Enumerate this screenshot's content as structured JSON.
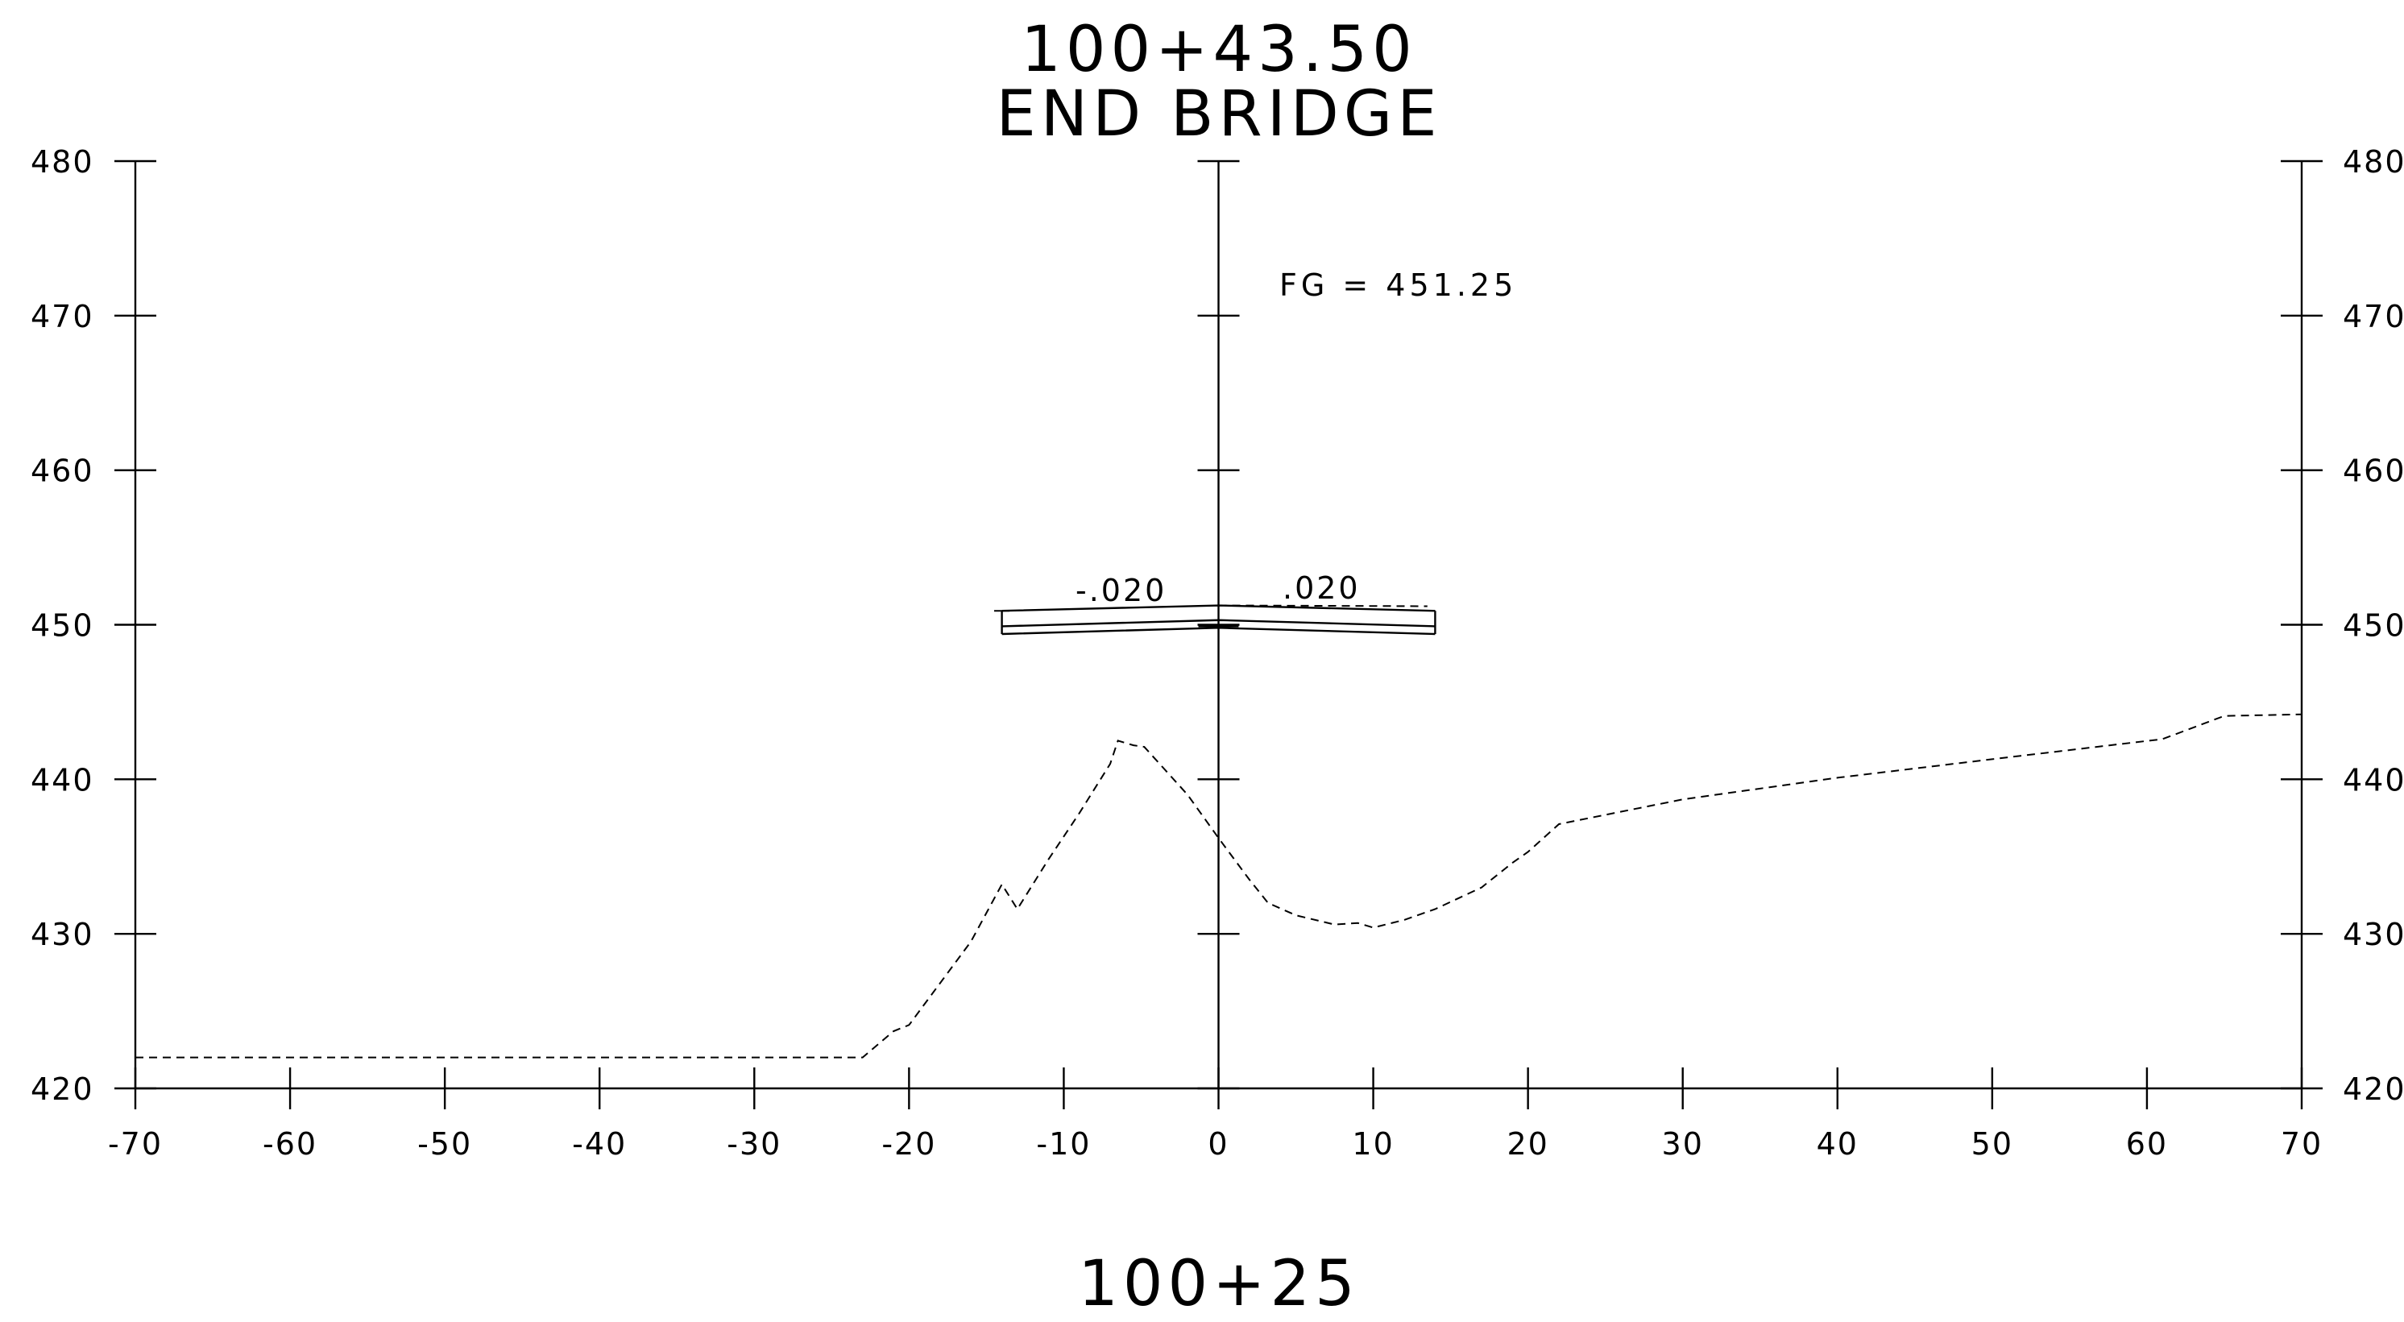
{
  "header": {
    "station": "100+43.50",
    "description": "END BRIDGE"
  },
  "footer": {
    "station": "100+25"
  },
  "annotations": {
    "finished_grade": "FG = 451.25",
    "slope_left": "-.020",
    "slope_right": ".020"
  },
  "chart_data": {
    "type": "line",
    "title": "100+43.50",
    "subtitle": "END BRIDGE",
    "xlim": [
      -70,
      70
    ],
    "ylim": [
      420,
      480
    ],
    "x_ticks": [
      -70,
      -60,
      -50,
      -40,
      -30,
      -20,
      -10,
      0,
      10,
      20,
      30,
      40,
      50,
      60,
      70
    ],
    "x_tick_labels": [
      "-70",
      "-60",
      "-50",
      "-40",
      "-30",
      "-20",
      "-10",
      "0",
      "10",
      "20",
      "30",
      "40",
      "50",
      "60",
      "70"
    ],
    "y_ticks": [
      420,
      430,
      440,
      450,
      460,
      470,
      480
    ],
    "y_tick_labels": [
      "420",
      "430",
      "440",
      "450",
      "460",
      "470",
      "480"
    ],
    "grid": false,
    "series": [
      {
        "style": "dashed",
        "points": [
          [
            -70,
            422
          ],
          [
            -23,
            422
          ],
          [
            -21,
            423.7
          ],
          [
            -20,
            424.1
          ],
          [
            -16,
            429.5
          ],
          [
            -14,
            433.2
          ],
          [
            -13,
            431.6
          ],
          [
            -11,
            434.8
          ],
          [
            -9,
            437.8
          ],
          [
            -7,
            441
          ],
          [
            -6.5,
            442.5
          ],
          [
            -5.5,
            442.2
          ],
          [
            -4.8,
            442.1
          ],
          [
            -2,
            439
          ],
          [
            0,
            436.2
          ],
          [
            2,
            433.5
          ],
          [
            3.2,
            432
          ],
          [
            5,
            431.2
          ],
          [
            7.5,
            430.6
          ],
          [
            9,
            430.7
          ],
          [
            10,
            430.4
          ],
          [
            12,
            430.9
          ],
          [
            14,
            431.6
          ],
          [
            17,
            433
          ],
          [
            18.5,
            434.2
          ],
          [
            19,
            434.6
          ],
          [
            20,
            435.3
          ],
          [
            22,
            437.1
          ],
          [
            30,
            438.7
          ],
          [
            40,
            440.1
          ],
          [
            50,
            441.3
          ],
          [
            61,
            442.6
          ],
          [
            65,
            444.1
          ],
          [
            70,
            444.2
          ]
        ]
      },
      {
        "style": "solid",
        "points": [
          [
            -14,
            450.9
          ],
          [
            0,
            451.25
          ],
          [
            14,
            450.9
          ]
        ]
      },
      {
        "style": "dashed",
        "points": [
          [
            0,
            451.25
          ],
          [
            13.5,
            451.2
          ]
        ]
      }
    ],
    "bridge_deck": {
      "top": [
        [
          -14,
          450.9
        ],
        [
          0,
          451.25
        ],
        [
          14,
          450.9
        ]
      ],
      "mid": [
        [
          -14,
          449.9
        ],
        [
          0,
          450.3
        ],
        [
          14,
          449.9
        ]
      ],
      "bottom": [
        [
          -14,
          449.4
        ],
        [
          0,
          449.8
        ],
        [
          14,
          449.4
        ]
      ]
    }
  }
}
